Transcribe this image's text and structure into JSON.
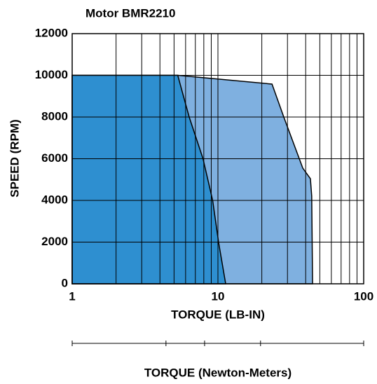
{
  "chart_data": {
    "type": "area",
    "title": "Motor BMR2210",
    "xlabel": "TORQUE (LB-IN)",
    "ylabel": "SPEED (RPM)",
    "x2label": "TORQUE (Newton-Meters)",
    "xscale": "log",
    "xlim": [
      1,
      100
    ],
    "xticks": [
      1,
      10,
      100
    ],
    "xminor": [
      2,
      3,
      4,
      5,
      6,
      7,
      8,
      9,
      20,
      30,
      40,
      50,
      60,
      70,
      80,
      90
    ],
    "x2ticks": [
      1,
      4.4,
      8.1,
      19.6,
      100
    ],
    "ylim": [
      0,
      12000
    ],
    "yticks": [
      0,
      2000,
      4000,
      6000,
      8000,
      10000,
      12000
    ],
    "grid": true,
    "series": [
      {
        "color": "#7fb0e0",
        "x": [
          1,
          1,
          5.3,
          23.5,
          28.3,
          38.2,
          43.1,
          44,
          44.6
        ],
        "values": [
          0,
          10000,
          10000,
          9580,
          8000,
          5550,
          5040,
          4200,
          0
        ]
      },
      {
        "color": "#2e8fd0",
        "x": [
          1,
          1,
          5.3,
          5.8,
          6.35,
          7.9,
          9.2,
          10.1,
          11.3
        ],
        "values": [
          0,
          10000,
          10000,
          9000,
          8000,
          6000,
          4000,
          2000,
          0
        ]
      }
    ]
  }
}
